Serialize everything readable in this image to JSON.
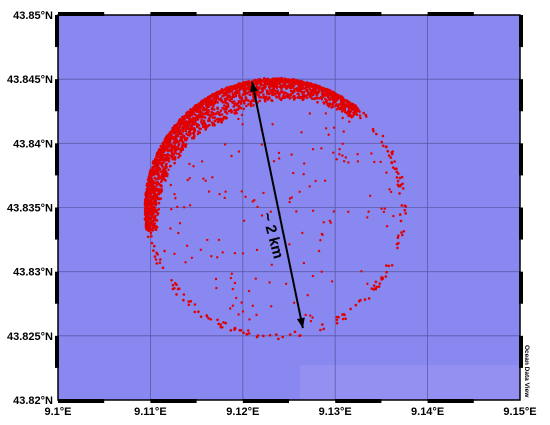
{
  "map": {
    "annotation": "~ 2 km",
    "credit": "Ocean Data View",
    "colors": {
      "water": "#8888f0",
      "water_lower": "#a8a0f4",
      "grid": "#5a5aa8",
      "points": "#e00000",
      "frame": "#000000"
    },
    "lon_ticks": [
      "9.1°E",
      "9.11°E",
      "9.12°E",
      "9.13°E",
      "9.14°E",
      "9.15°E"
    ],
    "lat_ticks": [
      "43.85°N",
      "43.845°N",
      "43.84°N",
      "43.835°N",
      "43.83°N",
      "43.825°N",
      "43.82°N"
    ],
    "lon_range": [
      9.1,
      9.15
    ],
    "lat_range": [
      43.82,
      43.85
    ]
  },
  "chart_data": {
    "type": "scatter",
    "title": "",
    "xlabel": "",
    "ylabel": "",
    "xlim": [
      9.1,
      9.15
    ],
    "ylim": [
      43.82,
      43.85
    ],
    "grid": true,
    "description_ring": {
      "center_lon": 9.1235,
      "center_lat": 43.8349,
      "radius_lat": 0.0101,
      "dense_arc_from_deg": 50,
      "dense_arc_to_deg": 190
    },
    "arrow": {
      "from": [
        9.121,
        43.8448
      ],
      "to": [
        9.1265,
        43.8256
      ],
      "label": "~ 2 km"
    }
  }
}
